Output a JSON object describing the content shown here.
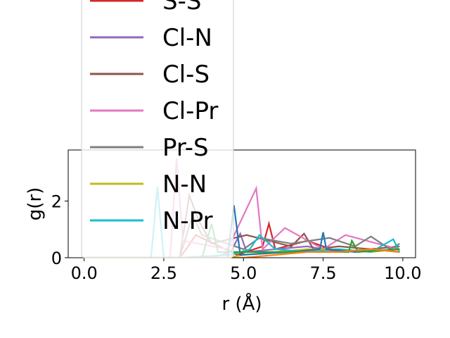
{
  "chart_data": {
    "type": "line",
    "xlabel": "r (Å)",
    "ylabel": "g(r)",
    "xlim": [
      -0.5,
      10.4
    ],
    "ylim": [
      0,
      3.8
    ],
    "x_ticks": [
      "0.0",
      "2.5",
      "5.0",
      "7.5",
      "10.0"
    ],
    "x_tick_values": [
      0,
      2.5,
      5,
      7.5,
      10
    ],
    "y_ticks": [
      "0",
      "2"
    ],
    "y_tick_values": [
      0,
      2
    ],
    "legend_position": "upper-left",
    "series": [
      {
        "name": "S-S",
        "color": "#d62728",
        "x": [
          0,
          2.0,
          3.0,
          3.2,
          3.5,
          4.8,
          5.6,
          5.8,
          6.0,
          7.0,
          8.0,
          9.0,
          9.9
        ],
        "y": [
          0,
          0,
          0,
          0.3,
          0.8,
          0.1,
          0.4,
          1.2,
          0.3,
          0.6,
          0.2,
          0.3,
          0.2
        ]
      },
      {
        "name": "Cl-N",
        "color": "#9467bd",
        "x": [
          0,
          4.0,
          4.6,
          4.9,
          5.1,
          6.0,
          7.0,
          8.0,
          9.0,
          9.9
        ],
        "y": [
          0,
          0,
          0.2,
          0.85,
          0.2,
          0.3,
          0.4,
          0.2,
          0.3,
          0.2
        ]
      },
      {
        "name": "Cl-S",
        "color": "#8c564b",
        "x": [
          0,
          3.0,
          3.3,
          3.6,
          4.0,
          5.1,
          6.5,
          6.9,
          7.2,
          8.0,
          9.0,
          9.9
        ],
        "y": [
          0,
          0,
          2.2,
          1.3,
          0.5,
          0.8,
          0.4,
          0.85,
          0.3,
          0.4,
          0.3,
          0.4
        ]
      },
      {
        "name": "Cl-Pr",
        "color": "#e377c2",
        "x": [
          0,
          2.7,
          2.9,
          3.1,
          4.5,
          5.4,
          5.6,
          6.3,
          7.5,
          8.2,
          9.2,
          9.9
        ],
        "y": [
          0,
          0,
          3.5,
          0.6,
          0.3,
          2.45,
          0.3,
          1.05,
          0.3,
          0.8,
          0.5,
          0.3
        ]
      },
      {
        "name": "Pr-S",
        "color": "#7f7f7f",
        "x": [
          0,
          3.0,
          3.4,
          3.7,
          5.0,
          5.5,
          6.5,
          7.7,
          8.5,
          9.0,
          9.6,
          9.9
        ],
        "y": [
          0,
          0,
          1.5,
          0.8,
          0.3,
          0.7,
          0.5,
          0.7,
          0.4,
          0.75,
          0.3,
          0.5
        ]
      },
      {
        "name": "N-N",
        "color": "#bcbd22",
        "x": [
          0,
          4.5,
          5.0,
          6.0,
          7.0,
          8.0,
          9.0,
          9.9
        ],
        "y": [
          0,
          0,
          0.1,
          0.2,
          0.3,
          0.3,
          0.2,
          0.3
        ]
      },
      {
        "name": "N-Pr",
        "color": "#17becf",
        "x": [
          0,
          2.1,
          2.3,
          2.5,
          3.0,
          4.6,
          5.2,
          5.5,
          6.0,
          7.0,
          8.0,
          9.0,
          9.7,
          9.9
        ],
        "y": [
          0,
          0,
          2.5,
          0,
          0,
          0.1,
          0.3,
          0.8,
          0.3,
          0.2,
          0.3,
          0.2,
          0.65,
          0.2
        ]
      },
      {
        "name": "",
        "color": "#1f77b4",
        "x": [
          0,
          4.5,
          4.7,
          4.9,
          6.5,
          7.4,
          7.5,
          7.6,
          8.5,
          9.9
        ],
        "y": [
          0,
          0,
          1.85,
          0.1,
          0.2,
          0.3,
          0.9,
          0.3,
          0.2,
          0.3
        ]
      },
      {
        "name": "",
        "color": "#2ca02c",
        "x": [
          0,
          3.7,
          4.0,
          4.2,
          6.0,
          8.3,
          8.4,
          8.6,
          9.9
        ],
        "y": [
          0,
          0,
          1.2,
          0.2,
          0.2,
          0.2,
          0.6,
          0.2,
          0.3
        ]
      },
      {
        "name": "",
        "color": "#ff7f0e",
        "x": [
          0,
          5.0,
          6.0,
          7.0,
          8.0,
          9.0,
          9.9
        ],
        "y": [
          0,
          0,
          0.1,
          0.2,
          0.2,
          0.3,
          0.2
        ]
      }
    ]
  }
}
